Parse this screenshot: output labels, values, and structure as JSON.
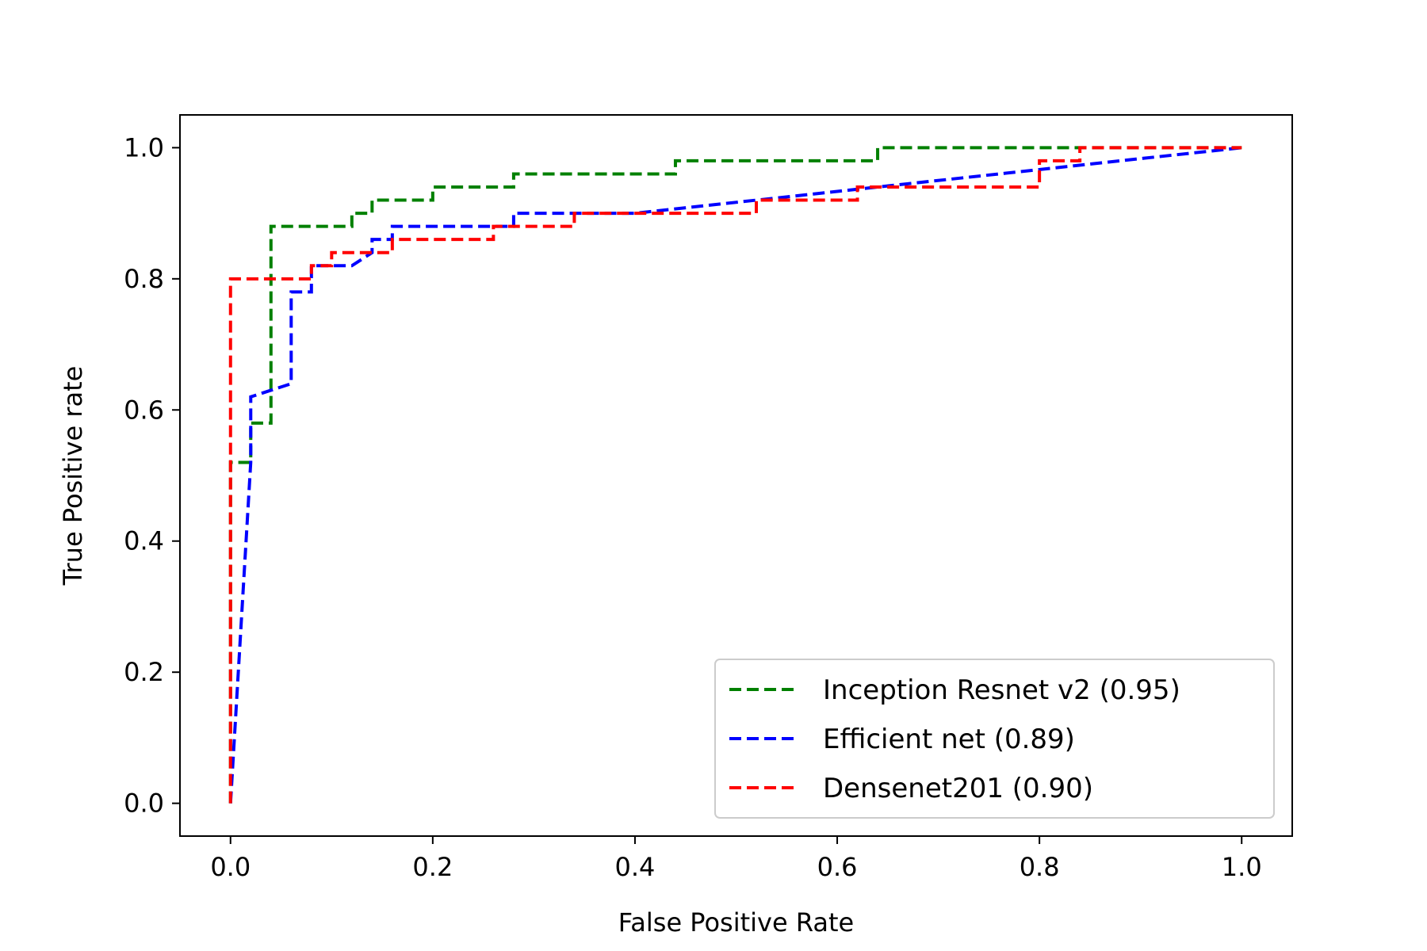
{
  "chart_data": {
    "type": "line",
    "title": "",
    "xlabel": "False Positive Rate",
    "ylabel": "True Positive rate",
    "xlim": [
      -0.05,
      1.05
    ],
    "ylim": [
      -0.05,
      1.05
    ],
    "xticks": [
      "0.0",
      "0.2",
      "0.4",
      "0.6",
      "0.8",
      "1.0"
    ],
    "yticks": [
      "0.0",
      "0.2",
      "0.4",
      "0.6",
      "0.8",
      "1.0"
    ],
    "grid": false,
    "legend_position": "lower-right",
    "line_style": "dashed",
    "series": [
      {
        "name": "Inception Resnet v2 (0.95)",
        "color": "#008000",
        "x": [
          0.0,
          0.0,
          0.02,
          0.02,
          0.04,
          0.04,
          0.12,
          0.12,
          0.14,
          0.14,
          0.2,
          0.2,
          0.28,
          0.28,
          0.44,
          0.44,
          0.64,
          0.64,
          1.0
        ],
        "y": [
          0.0,
          0.52,
          0.52,
          0.58,
          0.58,
          0.88,
          0.88,
          0.9,
          0.9,
          0.92,
          0.92,
          0.94,
          0.94,
          0.96,
          0.96,
          0.98,
          0.98,
          1.0,
          1.0
        ]
      },
      {
        "name": "Efficient net (0.89)",
        "color": "#0000ff",
        "x": [
          0.0,
          0.02,
          0.02,
          0.04,
          0.06,
          0.06,
          0.08,
          0.08,
          0.12,
          0.14,
          0.14,
          0.16,
          0.16,
          0.28,
          0.28,
          0.4,
          1.0
        ],
        "y": [
          0.0,
          0.52,
          0.62,
          0.63,
          0.64,
          0.78,
          0.78,
          0.82,
          0.82,
          0.84,
          0.86,
          0.86,
          0.88,
          0.88,
          0.9,
          0.9,
          1.0
        ]
      },
      {
        "name": "Densenet201 (0.90)",
        "color": "#ff0000",
        "x": [
          0.0,
          0.0,
          0.08,
          0.08,
          0.1,
          0.1,
          0.16,
          0.16,
          0.26,
          0.26,
          0.34,
          0.34,
          0.52,
          0.52,
          0.62,
          0.62,
          0.8,
          0.8,
          0.84,
          0.84,
          1.0
        ],
        "y": [
          0.0,
          0.8,
          0.8,
          0.82,
          0.82,
          0.84,
          0.84,
          0.86,
          0.86,
          0.88,
          0.88,
          0.9,
          0.9,
          0.92,
          0.92,
          0.94,
          0.94,
          0.98,
          0.98,
          1.0,
          1.0
        ]
      }
    ]
  }
}
